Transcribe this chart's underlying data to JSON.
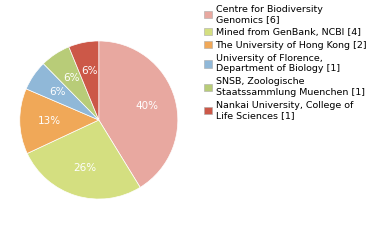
{
  "labels": [
    "Centre for Biodiversity\nGenomics [6]",
    "Mined from GenBank, NCBI [4]",
    "The University of Hong Kong [2]",
    "University of Florence,\nDepartment of Biology [1]",
    "SNSB, Zoologische\nStaatssammlung Muenchen [1]",
    "Nankai University, College of\nLife Sciences [1]"
  ],
  "values": [
    40,
    26,
    13,
    6,
    6,
    6
  ],
  "colors": [
    "#e8a8a0",
    "#d4df80",
    "#f0a858",
    "#90b8d8",
    "#b8cc78",
    "#cc5848"
  ],
  "pct_labels": [
    "40%",
    "26%",
    "13%",
    "6%",
    "6%",
    "6%"
  ],
  "legend_fontsize": 6.8,
  "pct_fontsize": 7.5,
  "startangle": 90
}
